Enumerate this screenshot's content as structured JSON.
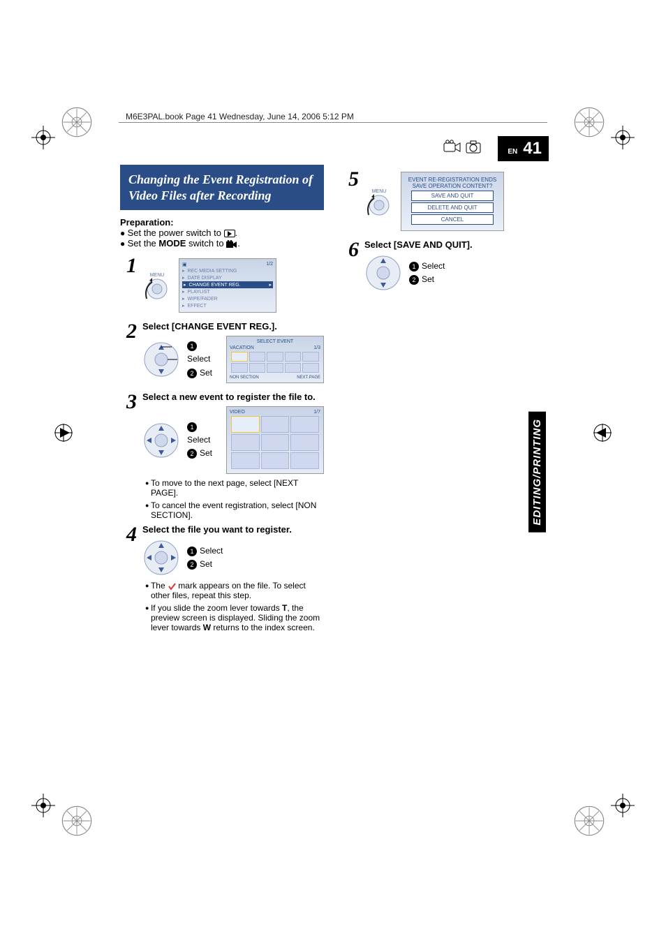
{
  "meta": {
    "top_note": "M6E3PAL.book  Page 41  Wednesday, June 14, 2006  5:12 PM",
    "page_label": "EN",
    "page_number": "41",
    "side_tab": "EDITING/PRINTING"
  },
  "title": "Changing the Event Registration of Video Files after Recording",
  "prep": {
    "heading": "Preparation:",
    "line1_pre": "Set the power switch to ",
    "line1_post": ".",
    "line2_pre": "Set the ",
    "line2_bold": "MODE",
    "line2_mid": " switch to ",
    "line2_post": "."
  },
  "labels": {
    "select": "Select",
    "set": "Set",
    "badge1": "1",
    "badge2": "2"
  },
  "screen_settings": {
    "page": "1/2",
    "items": [
      {
        "label": "REC MEDIA SETTING",
        "active": false
      },
      {
        "label": "DATE DISPLAY",
        "active": false
      },
      {
        "label": "CHANGE EVENT REG.",
        "active": true
      },
      {
        "label": "PLAYLIST",
        "active": false
      },
      {
        "label": "WIPE/FADER",
        "active": false
      },
      {
        "label": "EFFECT",
        "active": false
      }
    ]
  },
  "screen_event": {
    "title": "SELECT EVENT",
    "subtitle": "VACATION",
    "page": "1/3",
    "foot_left": "NON SECTION",
    "foot_right": "NEXT PAGE"
  },
  "screen_video": {
    "title": "VIDEO",
    "page": "1/7"
  },
  "dialog": {
    "line1": "EVENT RE-REGISTRATION ENDS",
    "line2": "SAVE OPERATION CONTENT?",
    "buttons": [
      "SAVE AND QUIT",
      "DELETE AND QUIT",
      "CANCEL"
    ]
  },
  "steps": {
    "s1": {
      "num": "1"
    },
    "s2": {
      "num": "2",
      "head": "Select [CHANGE EVENT REG.]."
    },
    "s3": {
      "num": "3",
      "head": "Select a new event to register the file to.",
      "notes": [
        "To move to the next page, select [NEXT PAGE].",
        "To cancel the event registration, select [NON SECTION]."
      ]
    },
    "s4": {
      "num": "4",
      "head": "Select the file you want to register.",
      "note1_pre": "The ",
      "note1_post": " mark appears on the file. To select other files, repeat this step.",
      "note2_a": "If you slide the zoom lever towards ",
      "note2_T": "T",
      "note2_b": ", the preview screen is displayed. Sliding the zoom lever towards ",
      "note2_W": "W",
      "note2_c": " returns to the index screen."
    },
    "s5": {
      "num": "5"
    },
    "s6": {
      "num": "6",
      "head": "Select [SAVE AND QUIT]."
    }
  },
  "colors": {
    "title_bg": "#2b4d87",
    "screen_grad_top": "#c8d4e6",
    "screen_grad_bot": "#e6ecf6"
  }
}
